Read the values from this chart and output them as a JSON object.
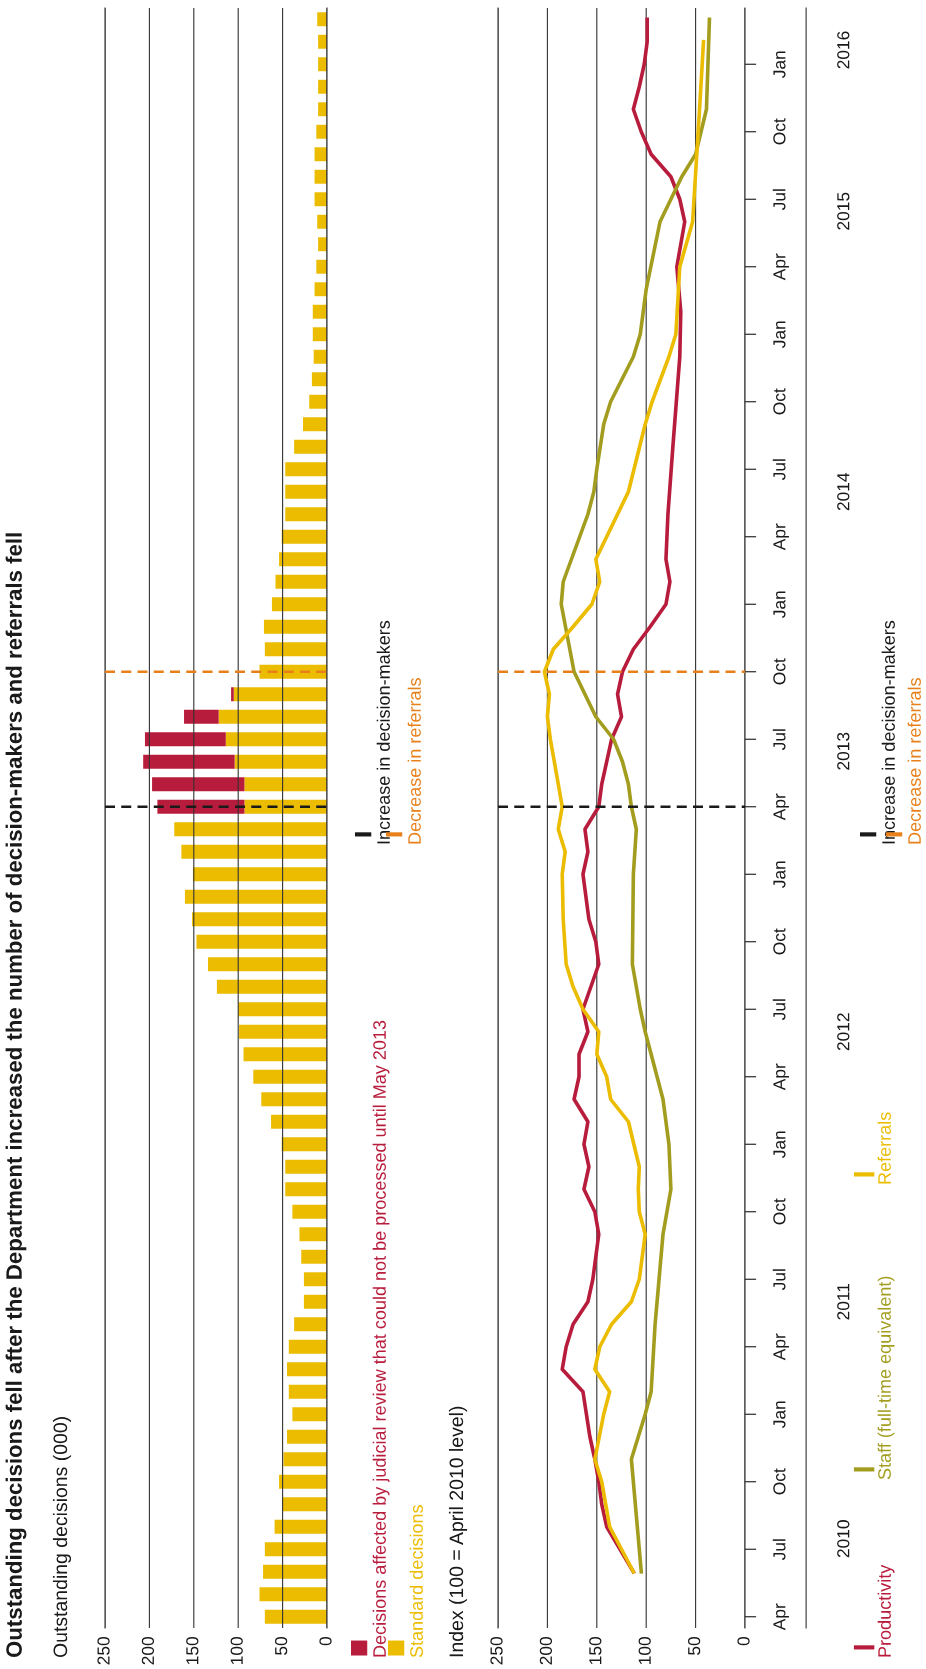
{
  "chart_data": [
    {
      "type": "bar",
      "orientation": "horizontal",
      "stacked": true,
      "title": "Outstanding decisions fell after the Department increased the number of decision-makers and referrals fell",
      "subtitle": "Outstanding decisions (000)",
      "x": [
        "2010-04",
        "2010-05",
        "2010-06",
        "2010-07",
        "2010-08",
        "2010-09",
        "2010-10",
        "2010-11",
        "2010-12",
        "2011-01",
        "2011-02",
        "2011-03",
        "2011-04",
        "2011-05",
        "2011-06",
        "2011-07",
        "2011-08",
        "2011-09",
        "2011-10",
        "2011-11",
        "2011-12",
        "2012-01",
        "2012-02",
        "2012-03",
        "2012-04",
        "2012-05",
        "2012-06",
        "2012-07",
        "2012-08",
        "2012-09",
        "2012-10",
        "2012-11",
        "2012-12",
        "2013-01",
        "2013-02",
        "2013-03",
        "2013-04",
        "2013-05",
        "2013-06",
        "2013-07",
        "2013-08",
        "2013-09",
        "2013-10",
        "2013-11",
        "2013-12",
        "2014-01",
        "2014-02",
        "2014-03",
        "2014-04",
        "2014-05",
        "2014-06",
        "2014-07",
        "2014-08",
        "2014-09",
        "2014-10",
        "2014-11",
        "2014-12",
        "2015-01",
        "2015-02",
        "2015-03",
        "2015-04",
        "2015-05",
        "2015-06",
        "2015-07",
        "2015-08",
        "2015-09",
        "2015-10",
        "2015-11",
        "2015-12",
        "2016-01",
        "2016-02",
        "2016-03"
      ],
      "series": [
        {
          "name": "Standard decisions",
          "color": "#ebbc00",
          "values": [
            70,
            76,
            72,
            70,
            59,
            50,
            54,
            49,
            45,
            39,
            43,
            45,
            43,
            37,
            26,
            26,
            29,
            31,
            39,
            47,
            47,
            51,
            63,
            74,
            83,
            94,
            99,
            100,
            124,
            134,
            147,
            152,
            160,
            151,
            164,
            172,
            93,
            93,
            104,
            114,
            122,
            105,
            76,
            70,
            71,
            62,
            58,
            54,
            51,
            47,
            47,
            47,
            37,
            27,
            20,
            17,
            15,
            16,
            16,
            14,
            12,
            10,
            11,
            14,
            14,
            14,
            12,
            10,
            10,
            10,
            10,
            11
          ]
        },
        {
          "name": "Decisions affected by judicial review that could not be processed until May 2013",
          "color": "#b81c3c",
          "values": [
            null,
            null,
            null,
            null,
            null,
            null,
            null,
            null,
            null,
            null,
            null,
            null,
            null,
            null,
            null,
            null,
            null,
            null,
            null,
            null,
            null,
            null,
            null,
            null,
            null,
            null,
            null,
            null,
            null,
            null,
            null,
            null,
            null,
            null,
            null,
            null,
            98,
            104,
            103,
            91,
            39,
            3,
            null,
            null,
            null,
            null,
            null,
            null,
            null,
            null,
            null,
            null,
            null,
            null,
            null,
            null,
            null,
            null,
            null,
            null,
            null,
            null,
            null,
            null,
            null,
            null,
            null,
            null,
            null,
            null,
            null,
            null
          ]
        }
      ],
      "xlim": [
        250,
        0
      ],
      "xticks": [
        250,
        200,
        150,
        100,
        50,
        0
      ],
      "ylim": [
        "2010-03-16",
        "2016-03-16"
      ],
      "grid": "x",
      "legend": "bottom",
      "tick_labels": "x",
      "ref_lines": [
        {
          "axis": "y",
          "value": "2013-04",
          "label": "Increase in decision-makers",
          "color": "#1a1a1a",
          "line_style": "dashed"
        },
        {
          "axis": "y",
          "value": "2013-10",
          "label": "Decrease in referrals",
          "color": "#e8801a",
          "line_style": "dashed"
        }
      ]
    },
    {
      "type": "line",
      "orientation": "horizontal",
      "subtitle": "Index (100 = April 2010 level)",
      "series": [
        {
          "name": "Productivity",
          "color": "#b81c3c",
          "x": [
            "2010-06",
            "2010-08",
            "2010-09",
            "2010-10",
            "2010-11",
            "2010-12",
            "2011-02",
            "2011-03",
            "2011-04",
            "2011-05",
            "2011-06",
            "2011-07",
            "2011-09",
            "2011-10",
            "2011-11",
            "2011-12",
            "2012-01",
            "2012-02",
            "2012-03",
            "2012-04",
            "2012-05",
            "2012-06",
            "2012-07",
            "2012-09",
            "2012-10",
            "2012-11",
            "2013-01",
            "2013-02",
            "2013-03",
            "2013-04",
            "2013-05",
            "2013-07",
            "2013-08",
            "2013-09",
            "2013-10",
            "2013-11",
            "2013-12",
            "2014-01",
            "2014-02",
            "2014-03",
            "2014-05",
            "2014-08",
            "2014-12",
            "2015-02",
            "2015-04",
            "2015-06",
            "2015-07",
            "2015-08",
            "2015-09",
            "2015-10",
            "2015-11",
            "2015-12",
            "2016-01",
            "2016-02",
            "2016-03"
          ],
          "values": [
            113,
            140,
            145,
            148,
            152,
            157,
            164,
            185,
            181,
            174,
            159,
            154,
            148,
            152,
            163,
            158,
            163,
            159,
            173,
            168,
            168,
            159,
            164,
            148,
            151,
            158,
            164,
            159,
            162,
            148,
            145,
            135,
            125,
            129,
            124,
            113,
            96,
            80,
            76,
            80,
            78,
            73,
            66,
            65,
            69,
            61,
            66,
            75,
            95,
            105,
            113,
            107,
            102,
            99,
            99
          ]
        },
        {
          "name": "Staff (full-time equivalent)",
          "color": "#a39d1f",
          "x": [
            "2010-06",
            "2010-11",
            "2011-01",
            "2011-02",
            "2011-05",
            "2011-09",
            "2011-11",
            "2012-01",
            "2012-03",
            "2012-06",
            "2012-07",
            "2012-09",
            "2013-01",
            "2013-03",
            "2013-04",
            "2013-05",
            "2013-06",
            "2013-07",
            "2013-08",
            "2013-10",
            "2014-01",
            "2014-02",
            "2014-05",
            "2014-06",
            "2014-07",
            "2014-09",
            "2014-10",
            "2014-12",
            "2015-01",
            "2015-03",
            "2015-06",
            "2015-07",
            "2015-08",
            "2015-09",
            "2015-11",
            "2016-03"
          ],
          "values": [
            105,
            115,
            101,
            95,
            91,
            83,
            75,
            77,
            83,
            101,
            106,
            114,
            113,
            110,
            115,
            118,
            124,
            133,
            151,
            173,
            186,
            184,
            159,
            153,
            150,
            143,
            136,
            113,
            106,
            100,
            86,
            75,
            64,
            50,
            39,
            36
          ]
        },
        {
          "name": "Referrals",
          "color": "#ebbc00",
          "x": [
            "2010-06",
            "2010-08",
            "2010-10",
            "2010-11",
            "2011-01",
            "2011-02",
            "2011-03",
            "2011-04",
            "2011-05",
            "2011-06",
            "2011-07",
            "2011-09",
            "2011-10",
            "2011-11",
            "2011-12",
            "2012-02",
            "2012-03",
            "2012-04",
            "2012-05",
            "2012-06",
            "2012-07",
            "2012-08",
            "2012-09",
            "2012-11",
            "2013-01",
            "2013-02",
            "2013-03",
            "2013-04",
            "2013-06",
            "2013-07",
            "2013-08",
            "2013-09",
            "2013-10",
            "2013-11",
            "2013-12",
            "2014-01",
            "2014-02",
            "2014-03",
            "2014-04",
            "2014-06",
            "2014-09",
            "2014-10",
            "2014-12",
            "2015-01",
            "2015-04",
            "2015-06",
            "2015-11",
            "2016-02"
          ],
          "values": [
            113,
            137,
            145,
            152,
            143,
            137,
            152,
            147,
            135,
            115,
            107,
            101,
            107,
            108,
            107,
            118,
            136,
            140,
            150,
            148,
            164,
            174,
            181,
            184,
            185,
            182,
            189,
            185,
            193,
            197,
            200,
            198,
            203,
            194,
            174,
            155,
            147,
            151,
            140,
            118,
            101,
            94,
            77,
            70,
            66,
            53,
            46,
            42
          ]
        }
      ],
      "xlim": [
        250,
        0
      ],
      "xticks": [
        250,
        200,
        150,
        100,
        50,
        0
      ],
      "ylim": [
        "2010-03-16",
        "2016-03-16"
      ],
      "yticks": [
        {
          "value": "2010-04",
          "label": "Apr"
        },
        {
          "value": "2010-07",
          "label": "Jul"
        },
        {
          "value": "2010-10",
          "label": "Oct"
        },
        {
          "value": "2011-01",
          "label": "Jan"
        },
        {
          "value": "2011-04",
          "label": "Apr"
        },
        {
          "value": "2011-07",
          "label": "Jul"
        },
        {
          "value": "2011-10",
          "label": "Oct"
        },
        {
          "value": "2012-01",
          "label": "Jan"
        },
        {
          "value": "2012-04",
          "label": "Apr"
        },
        {
          "value": "2012-07",
          "label": "Jul"
        },
        {
          "value": "2012-10",
          "label": "Oct"
        },
        {
          "value": "2013-01",
          "label": "Jan"
        },
        {
          "value": "2013-04",
          "label": "Apr"
        },
        {
          "value": "2013-07",
          "label": "Jul"
        },
        {
          "value": "2013-10",
          "label": "Oct"
        },
        {
          "value": "2014-01",
          "label": "Jan"
        },
        {
          "value": "2014-04",
          "label": "Apr"
        },
        {
          "value": "2014-07",
          "label": "Jul"
        },
        {
          "value": "2014-10",
          "label": "Oct"
        },
        {
          "value": "2015-01",
          "label": "Jan"
        },
        {
          "value": "2015-04",
          "label": "Apr"
        },
        {
          "value": "2015-07",
          "label": "Jul"
        },
        {
          "value": "2015-10",
          "label": "Oct"
        },
        {
          "value": "2016-01",
          "label": "Jan"
        }
      ],
      "y2ticks": [
        {
          "value": "2010-07-15",
          "label": "2010"
        },
        {
          "value": "2011-06-01",
          "label": "2011"
        },
        {
          "value": "2012-06-01",
          "label": "2012"
        },
        {
          "value": "2013-06-15",
          "label": "2013"
        },
        {
          "value": "2014-06-01",
          "label": "2014"
        },
        {
          "value": "2015-06-15",
          "label": "2015"
        },
        {
          "value": "2016-01-20",
          "label": "2016"
        }
      ],
      "y2lim": [
        "2010-03-16",
        "2016-03-16"
      ],
      "grid": "x",
      "legend": "bottom",
      "ref_lines": [
        {
          "axis": "y",
          "value": "2013-04",
          "label": "Increase in decision-makers",
          "color": "#1a1a1a",
          "line_style": "dashed"
        },
        {
          "axis": "y",
          "value": "2013-10",
          "label": "Decrease in referrals",
          "color": "#e8801a",
          "line_style": "dashed"
        }
      ]
    }
  ]
}
